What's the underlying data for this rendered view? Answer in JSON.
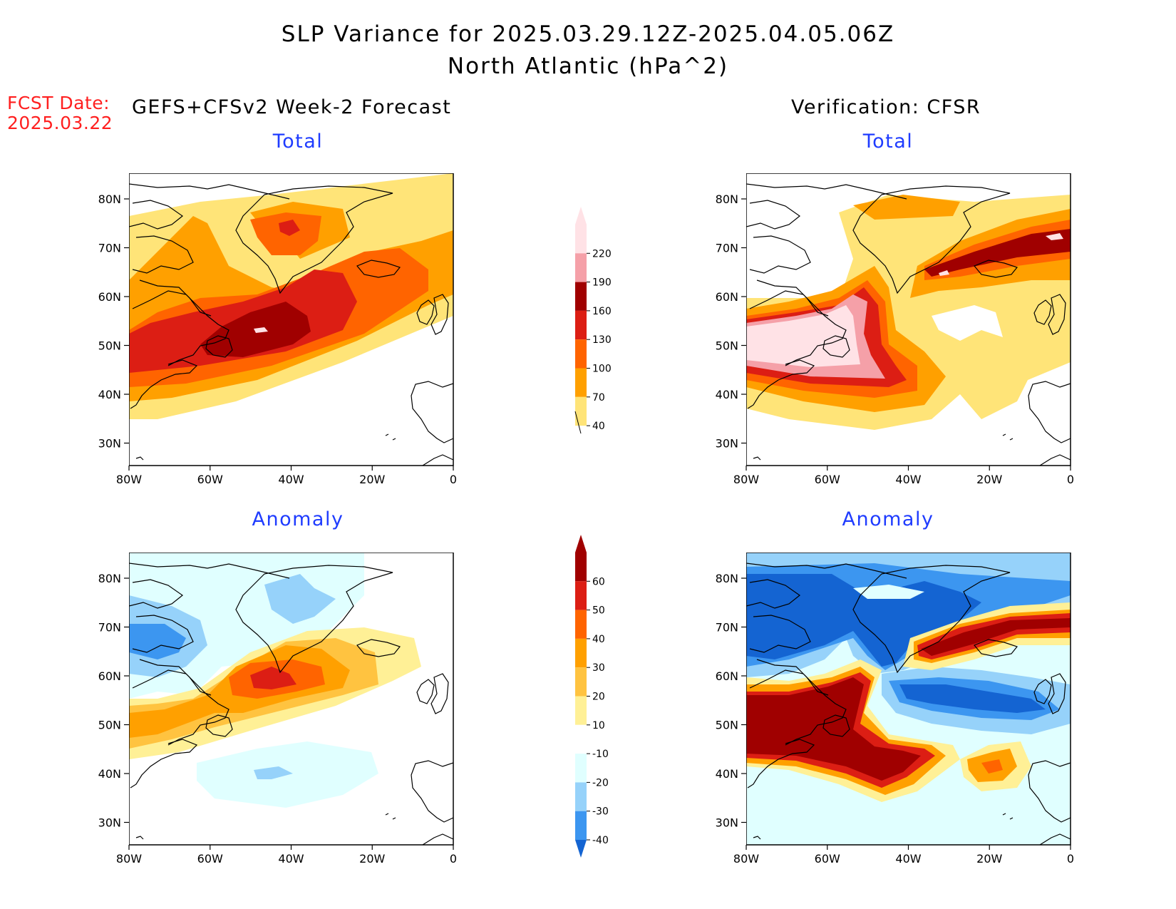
{
  "header": {
    "title_line1": "SLP Variance for 2025.03.29.12Z-2025.04.05.06Z",
    "title_line2": "North Atlantic (hPa^2)"
  },
  "fcst": {
    "label": "FCST Date:",
    "date": "2025.03.22"
  },
  "columns": {
    "left": "GEFS+CFSv2 Week-2 Forecast",
    "right": "Verification: CFSR"
  },
  "panels": {
    "top_left": "Total",
    "top_right": "Total",
    "bottom_left": "Anomaly",
    "bottom_right": "Anomaly"
  },
  "axes": {
    "lat_labels": [
      "80N",
      "70N",
      "60N",
      "50N",
      "40N",
      "30N"
    ],
    "lon_labels": [
      "80W",
      "60W",
      "40W",
      "20W",
      "0"
    ]
  },
  "legend_total": {
    "levels": [
      "220",
      "190",
      "160",
      "130",
      "100",
      "70",
      "40"
    ],
    "colors": [
      "#ffe2e6",
      "#f5a0a8",
      "#a00000",
      "#dc1e14",
      "#ff6400",
      "#ffa000",
      "#ffe478"
    ]
  },
  "legend_anomaly": {
    "levels": [
      "60",
      "50",
      "40",
      "30",
      "20",
      "10",
      "-10",
      "-20",
      "-30",
      "-40"
    ],
    "colors": [
      "#a00000",
      "#dc1e14",
      "#ff6400",
      "#ffa000",
      "#ffc340",
      "#fff096",
      "#ffffff",
      "#e0ffff",
      "#96d2fa",
      "#3c96f0",
      "#1464d2"
    ]
  }
}
